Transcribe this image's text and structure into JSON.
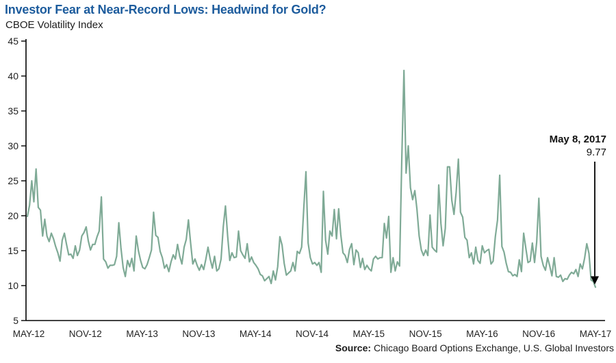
{
  "header": {
    "title": "Investor Fear at Near-Record Lows: Headwind for Gold?",
    "subtitle": "CBOE Volatility Index",
    "title_color": "#1d5c9d"
  },
  "source": {
    "prefix": "Source:",
    "text": "Chicago Board Options Exchange, U.S. Global Investors"
  },
  "chart_data": {
    "type": "line",
    "title": "Investor Fear at Near-Record Lows: Headwind for Gold?",
    "subtitle": "CBOE Volatility Index",
    "ylabel": "CBOE Volatility Index",
    "ylim": [
      5,
      45
    ],
    "yticks": [
      5,
      10,
      15,
      20,
      25,
      30,
      35,
      40,
      45
    ],
    "xticklabels": [
      "MAY-12",
      "NOV-12",
      "MAY-13",
      "NOV-13",
      "MAY-14",
      "NOV-14",
      "MAY-15",
      "NOV-15",
      "MAY-16",
      "NOV-16",
      "MAY-17"
    ],
    "grid": false,
    "legend": false,
    "line_color": "#7faa96",
    "sampling": "approximate weekly values, May 2012 - May 8 2017",
    "series": [
      {
        "name": "CBOE Volatility Index (VIX)",
        "values": [
          19.9,
          21.5,
          25.0,
          22.0,
          26.7,
          21.2,
          20.8,
          17.1,
          19.5,
          17.1,
          16.3,
          17.5,
          16.7,
          15.6,
          14.7,
          13.5,
          16.5,
          17.5,
          15.9,
          14.4,
          14.5,
          13.9,
          15.7,
          14.3,
          15.1,
          17.1,
          17.6,
          18.4,
          16.4,
          15.1,
          15.9,
          15.9,
          17.0,
          17.8,
          22.7,
          13.8,
          13.4,
          12.5,
          12.9,
          12.9,
          13.0,
          14.2,
          19.0,
          15.4,
          12.6,
          11.3,
          13.6,
          12.7,
          13.9,
          12.1,
          17.1,
          15.0,
          13.6,
          12.6,
          12.4,
          13.0,
          14.0,
          15.1,
          20.5,
          17.2,
          16.9,
          14.9,
          14.0,
          12.5,
          13.0,
          12.0,
          13.4,
          14.4,
          13.8,
          15.9,
          14.2,
          13.1,
          15.5,
          16.6,
          19.4,
          16.1,
          13.1,
          13.8,
          12.9,
          12.2,
          13.0,
          12.3,
          13.8,
          15.5,
          13.8,
          12.5,
          14.2,
          12.1,
          12.4,
          13.8,
          18.4,
          21.4,
          17.1,
          13.6,
          14.7,
          14.0,
          14.1,
          17.8,
          15.0,
          14.4,
          13.9,
          16.0,
          13.4,
          14.1,
          13.3,
          12.9,
          12.4,
          11.6,
          11.4,
          10.7,
          11.0,
          11.3,
          10.3,
          12.1,
          10.8,
          12.7,
          17.0,
          15.8,
          13.2,
          11.5,
          11.8,
          12.1,
          13.3,
          12.1,
          14.9,
          14.6,
          15.5,
          21.2,
          26.3,
          16.1,
          14.0,
          13.1,
          13.3,
          12.9,
          13.3,
          11.9,
          23.5,
          16.5,
          14.5,
          17.8,
          17.1,
          20.9,
          16.7,
          21.0,
          17.3,
          14.7,
          14.3,
          13.3,
          15.2,
          16.0,
          13.0,
          15.1,
          14.7,
          12.6,
          13.9,
          12.3,
          12.9,
          12.4,
          12.1,
          13.8,
          14.2,
          13.8,
          14.0,
          14.0,
          18.9,
          16.8,
          19.9,
          11.9,
          14.0,
          12.1,
          13.4,
          12.8,
          28.0,
          40.8,
          26.1,
          30.0,
          24.0,
          22.3,
          23.6,
          20.9,
          17.1,
          15.1,
          14.3,
          15.1,
          14.3,
          20.1,
          15.5,
          15.1,
          14.8,
          24.4,
          18.9,
          15.7,
          18.2,
          27.0,
          27.0,
          22.2,
          20.2,
          23.4,
          28.1,
          20.5,
          19.8,
          16.9,
          16.5,
          14.0,
          14.7,
          13.1,
          15.5,
          13.6,
          13.2,
          15.7,
          14.7,
          15.0,
          15.2,
          13.1,
          13.5,
          17.0,
          19.4,
          25.8,
          15.6,
          14.8,
          13.2,
          12.0,
          11.9,
          11.4,
          11.6,
          11.3,
          13.7,
          12.0,
          17.5,
          15.4,
          13.3,
          13.5,
          16.1,
          13.3,
          16.2,
          22.5,
          14.2,
          12.9,
          12.2,
          14.0,
          12.8,
          11.4,
          14.0,
          11.3,
          11.2,
          11.5,
          10.6,
          11.0,
          10.9,
          11.5,
          11.9,
          11.7,
          12.3,
          11.3,
          13.1,
          12.4,
          13.9,
          16.0,
          14.6,
          10.8,
          10.6,
          9.77
        ]
      }
    ],
    "annotation": {
      "date_label": "May 8, 2017",
      "value_label": "9.77",
      "value": 9.77
    }
  }
}
